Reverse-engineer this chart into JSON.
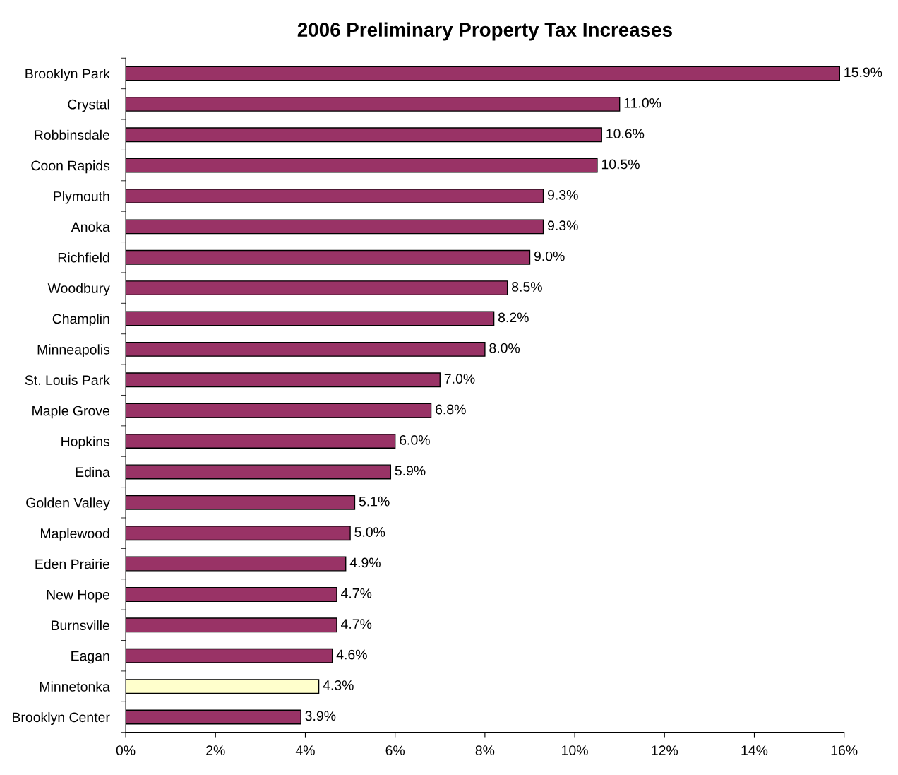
{
  "chart_data": {
    "type": "bar",
    "orientation": "horizontal",
    "title": "2006 Preliminary Property Tax Increases",
    "categories": [
      "Brooklyn Park",
      "Crystal",
      "Robbinsdale",
      "Coon Rapids",
      "Plymouth",
      "Anoka",
      "Richfield",
      "Woodbury",
      "Champlin",
      "Minneapolis",
      "St. Louis Park",
      "Maple Grove",
      "Hopkins",
      "Edina",
      "Golden Valley",
      "Maplewood",
      "Eden Prairie",
      "New Hope",
      "Burnsville",
      "Eagan",
      "Minnetonka",
      "Brooklyn Center"
    ],
    "values": [
      15.9,
      11.0,
      10.6,
      10.5,
      9.3,
      9.3,
      9.0,
      8.5,
      8.2,
      8.0,
      7.0,
      6.8,
      6.0,
      5.9,
      5.1,
      5.0,
      4.9,
      4.7,
      4.7,
      4.6,
      4.3,
      3.9
    ],
    "value_labels": [
      "15.9%",
      "11.0%",
      "10.6%",
      "10.5%",
      "9.3%",
      "9.3%",
      "9.0%",
      "8.5%",
      "8.2%",
      "8.0%",
      "7.0%",
      "6.8%",
      "6.0%",
      "5.9%",
      "5.1%",
      "5.0%",
      "4.9%",
      "4.7%",
      "4.7%",
      "4.6%",
      "4.3%",
      "3.9%"
    ],
    "colors": [
      "#993366",
      "#993366",
      "#993366",
      "#993366",
      "#993366",
      "#993366",
      "#993366",
      "#993366",
      "#993366",
      "#993366",
      "#993366",
      "#993366",
      "#993366",
      "#993366",
      "#993366",
      "#993366",
      "#993366",
      "#993366",
      "#993366",
      "#993366",
      "#ffffcc",
      "#993366"
    ],
    "xlim": [
      0,
      16
    ],
    "xticks": [
      {
        "value": 0,
        "label": "0%"
      },
      {
        "value": 2,
        "label": "2%"
      },
      {
        "value": 4,
        "label": "4%"
      },
      {
        "value": 6,
        "label": "6%"
      },
      {
        "value": 8,
        "label": "8%"
      },
      {
        "value": 10,
        "label": "10%"
      },
      {
        "value": 12,
        "label": "12%"
      },
      {
        "value": 14,
        "label": "14%"
      },
      {
        "value": 16,
        "label": "16%"
      }
    ],
    "grid": false,
    "legend": false
  }
}
